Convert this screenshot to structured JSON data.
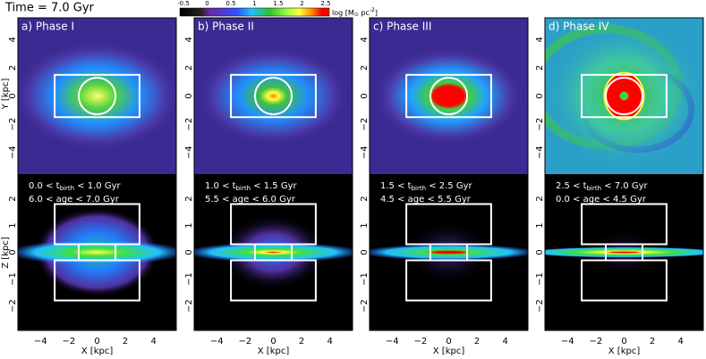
{
  "time_label": "Time = 7.0 Gyr",
  "colorbar": {
    "ticks": [
      "-0.5",
      "0",
      "0.5",
      "1",
      "1.5",
      "2",
      "2.5"
    ],
    "label": {
      "prefix": "log [M",
      "sub": "⊙",
      "middle": " pc",
      "sup": "-2",
      "suffix": "]"
    }
  },
  "axes": {
    "x_label": "X [kpc]",
    "y_label_top": "Y [kpc]",
    "y_label_bottom": "Z [kpc]",
    "x_ticks": [
      "−4",
      "−2",
      "0",
      "2",
      "4"
    ],
    "y_ticks_top": [
      "4",
      "2",
      "0",
      "−2",
      "−4"
    ],
    "y_ticks_bottom": [
      "2",
      "1",
      "0",
      "−1",
      "−2"
    ]
  },
  "panels": [
    {
      "title": "a) Phase I",
      "tbirth": {
        "prefix": "0.0 < t",
        "sub": "birth",
        "suffix": " < 1.0 Gyr"
      },
      "age": "6.0 < age < 7.0 Gyr"
    },
    {
      "title": "b) Phase II",
      "tbirth": {
        "prefix": "1.0 < t",
        "sub": "birth",
        "suffix": " < 1.5 Gyr"
      },
      "age": "5.5 < age < 6.0 Gyr"
    },
    {
      "title": "c) Phase III",
      "tbirth": {
        "prefix": "1.5 < t",
        "sub": "birth",
        "suffix": " < 2.5 Gyr"
      },
      "age": "4.5 < age < 5.5 Gyr"
    },
    {
      "title": "d) Phase IV",
      "tbirth": {
        "prefix": "2.5 < t",
        "sub": "birth",
        "suffix": " < 7.0 Gyr"
      },
      "age": "0.0 < age < 4.5 Gyr"
    }
  ]
}
